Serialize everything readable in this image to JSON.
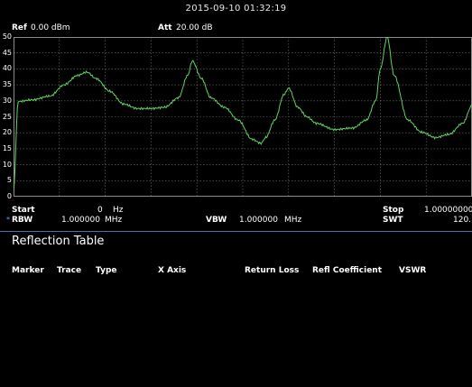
{
  "status": {
    "timestamp": "2015-09-10    01:32:19"
  },
  "header": {
    "ref_label": "Ref",
    "ref_value": "0.00 dBm",
    "att_label": "Att",
    "att_value": "20.00 dB"
  },
  "y_ticks": [
    "50",
    "45",
    "40",
    "35",
    "30",
    "25",
    "20",
    "15",
    "10",
    "5",
    "0"
  ],
  "footer": {
    "start_label": "Start",
    "start_value": "0",
    "start_unit": "Hz",
    "stop_label": "Stop",
    "stop_value": "1.00000000",
    "rbw_marker": "*",
    "rbw_label": "RBW",
    "rbw_value": "1.000000",
    "rbw_unit": "MHz",
    "vbw_label": "VBW",
    "vbw_value": "1.000000",
    "vbw_unit": "MHz",
    "swt_label": "SWT",
    "swt_value": "120."
  },
  "reflection_table": {
    "title": "Reflection Table",
    "columns": [
      "Marker",
      "Trace",
      "Type",
      "X Axis",
      "Return Loss",
      "Refl Coefficient",
      "VSWR"
    ]
  },
  "colors": {
    "trace": "#5fd35f",
    "grid": "#707070",
    "separator": "#3a78b5",
    "background": "#000000"
  },
  "chart_data": {
    "type": "line",
    "ylim": [
      0,
      50
    ],
    "xlim": [
      0,
      1
    ],
    "grid": true,
    "series": [
      {
        "x": [
          0.0,
          0.01,
          0.04,
          0.08,
          0.11,
          0.14,
          0.16,
          0.18,
          0.21,
          0.24,
          0.27,
          0.3,
          0.33,
          0.36,
          0.38,
          0.39,
          0.41,
          0.43,
          0.46,
          0.49,
          0.52,
          0.54,
          0.55,
          0.57,
          0.59,
          0.6,
          0.62,
          0.64,
          0.66,
          0.7,
          0.74,
          0.77,
          0.79,
          0.8,
          0.815,
          0.83,
          0.86,
          0.89,
          0.92,
          0.95,
          0.98,
          1.0
        ],
        "y": [
          2,
          29.8,
          30.3,
          31.5,
          35,
          38,
          39,
          37,
          33,
          29,
          27.6,
          27.6,
          28,
          31,
          38,
          42.5,
          37,
          31,
          28,
          24,
          18,
          16.7,
          18.5,
          24,
          32,
          34,
          28,
          25,
          23,
          21,
          21.5,
          24,
          30,
          40,
          50,
          38,
          24,
          20.2,
          18.5,
          19.5,
          23,
          28.5
        ]
      }
    ]
  }
}
